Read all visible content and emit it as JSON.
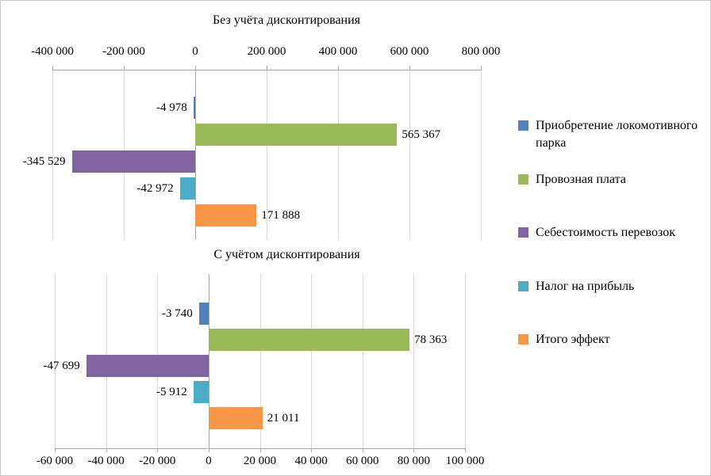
{
  "page": {
    "background": "#ffffff",
    "border_color": "#c9c9c9",
    "text_color": "#000000",
    "gridline_color": "#d9d9d9",
    "axis_color": "#a6a6a6"
  },
  "chart_data": [
    {
      "type": "bar",
      "orientation": "horizontal",
      "title": "Без учёта дисконтирования",
      "xlabel": "",
      "ylabel": "",
      "xlim": [
        -400000,
        800000
      ],
      "grid": true,
      "axis_position": "top",
      "ticks": [
        {
          "value": -400000,
          "label": "-400 000"
        },
        {
          "value": -200000,
          "label": "-200 000"
        },
        {
          "value": 0,
          "label": "0"
        },
        {
          "value": 200000,
          "label": "200 000"
        },
        {
          "value": 400000,
          "label": "400 000"
        },
        {
          "value": 600000,
          "label": "600 000"
        },
        {
          "value": 800000,
          "label": "800 000"
        }
      ],
      "bars": [
        {
          "category": "Приобретение локомотивного парка",
          "value": -4978,
          "label": "-4 978",
          "color": "#4F81BD"
        },
        {
          "category": "Провозная плата",
          "value": 565367,
          "label": "565 367",
          "color": "#9BBB59"
        },
        {
          "category": "Себестоимость перевозок",
          "value": -345529,
          "label": "-345 529",
          "color": "#8064A2"
        },
        {
          "category": "Налог на прибыль",
          "value": -42972,
          "label": "-42 972",
          "color": "#4BACC6"
        },
        {
          "category": "Итого эффект",
          "value": 171888,
          "label": "171 888",
          "color": "#F79646"
        }
      ]
    },
    {
      "type": "bar",
      "orientation": "horizontal",
      "title": "С учётом дисконтирования",
      "xlabel": "",
      "ylabel": "",
      "xlim": [
        -60000,
        100000
      ],
      "grid": true,
      "axis_position": "bottom",
      "ticks": [
        {
          "value": -60000,
          "label": "-60 000"
        },
        {
          "value": -40000,
          "label": "-40 000"
        },
        {
          "value": -20000,
          "label": "-20 000"
        },
        {
          "value": 0,
          "label": "0"
        },
        {
          "value": 20000,
          "label": "20 000"
        },
        {
          "value": 40000,
          "label": "40 000"
        },
        {
          "value": 60000,
          "label": "60 000"
        },
        {
          "value": 80000,
          "label": "80 000"
        },
        {
          "value": 100000,
          "label": "100 000"
        }
      ],
      "bars": [
        {
          "category": "Приобретение локомотивного парка",
          "value": -3740,
          "label": "-3 740",
          "color": "#4F81BD"
        },
        {
          "category": "Провозная плата",
          "value": 78363,
          "label": "78 363",
          "color": "#9BBB59"
        },
        {
          "category": "Себестоимость перевозок",
          "value": -47699,
          "label": "-47 699",
          "color": "#8064A2"
        },
        {
          "category": "Налог на прибыль",
          "value": -5912,
          "label": "-5 912",
          "color": "#4BACC6"
        },
        {
          "category": "Итого эффект",
          "value": 21011,
          "label": "21 011",
          "color": "#F79646"
        }
      ]
    }
  ],
  "legend": {
    "position": "right",
    "items": [
      {
        "label": "Приобретение локомотивного парка",
        "color": "#4F81BD"
      },
      {
        "label": "Провозная плата",
        "color": "#9BBB59"
      },
      {
        "label": "Себестоимость перевозок",
        "color": "#8064A2"
      },
      {
        "label": "Налог на прибыль",
        "color": "#4BACC6"
      },
      {
        "label": "Итого эффект",
        "color": "#F79646"
      }
    ]
  }
}
